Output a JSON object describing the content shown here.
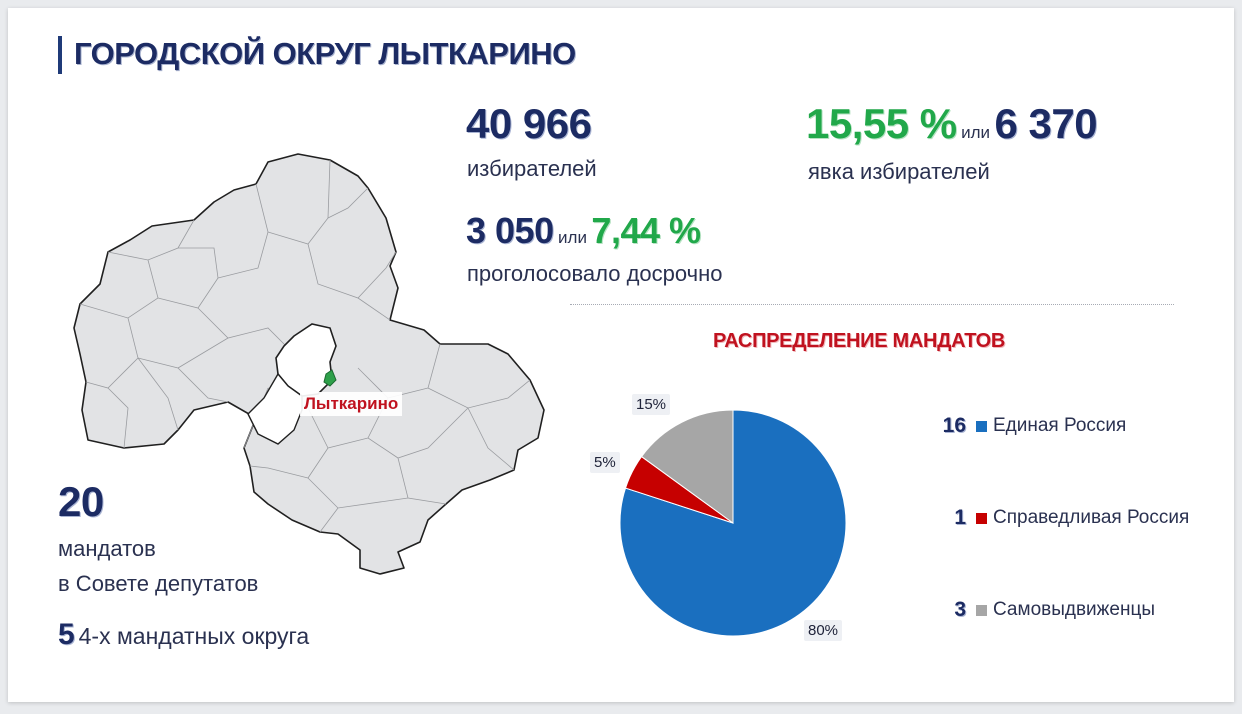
{
  "title": "ГОРОДСКОЙ ОКРУГ ЛЫТКАРИНО",
  "voters": {
    "value": "40 966",
    "label": "избирателей"
  },
  "early": {
    "count": "3 050",
    "or": "или",
    "percent": "7,44 %",
    "label": "проголосовало досрочно"
  },
  "turnout": {
    "percent": "15,55 %",
    "or": "или",
    "count": "6 370",
    "label": "явка избирателей"
  },
  "mandates": {
    "value": "20",
    "line1": "мандатов",
    "line2": "в Совете депутатов"
  },
  "districts": {
    "value": "5",
    "label": "4-х мандатных округа"
  },
  "map": {
    "label": "Лыткарино"
  },
  "colors": {
    "navy": "#1c2b63",
    "green": "#21a84a",
    "red": "#c0121f"
  },
  "chart_data": {
    "type": "pie",
    "title": "РАСПРЕДЕЛЕНИЕ МАНДАТОВ",
    "series": [
      {
        "name": "Единая Россия",
        "count": "16",
        "value": 80,
        "label": "80%",
        "color": "#1a6fbf"
      },
      {
        "name": "Справедливая Россия",
        "count": "1",
        "value": 5,
        "label": "5%",
        "color": "#c60000"
      },
      {
        "name": "Самовыдвиженцы",
        "count": "3",
        "value": 15,
        "label": "15%",
        "color": "#a6a6a6"
      }
    ],
    "legend_position": "right"
  }
}
